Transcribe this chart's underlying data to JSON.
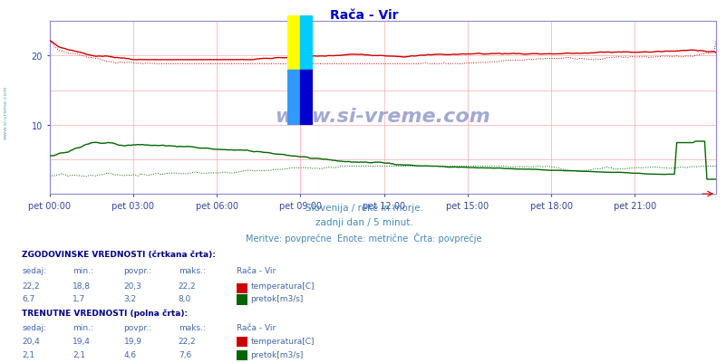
{
  "title": "Rača - Vir",
  "title_color": "#0000cc",
  "bg_color": "#ffffff",
  "plot_bg_color": "#ffffff",
  "subtitle_lines": [
    "Slovenija / reke in morje.",
    "zadnji dan / 5 minut.",
    "Meritve: povprečne  Enote: metrične  Črta: povprečje"
  ],
  "subtitle_color": "#4488bb",
  "xlabel_ticks": [
    "pet 00:00",
    "pet 03:00",
    "pet 06:00",
    "pet 09:00",
    "pet 12:00",
    "pet 15:00",
    "pet 18:00",
    "pet 21:00"
  ],
  "xlabel_tick_positions": [
    0,
    36,
    72,
    108,
    144,
    180,
    216,
    252
  ],
  "total_points": 288,
  "y_max": 25,
  "y_min": 0,
  "grid_color": "#ffaaaa",
  "temp_color": "#cc0000",
  "flow_color": "#006600",
  "watermark_text": "www.si-vreme.com",
  "watermark_color": "#334499",
  "watermark_alpha": 0.45,
  "axis_color": "#8888cc",
  "tick_color": "#334499",
  "table_header_color": "#000088",
  "table_text_color": "#4466aa",
  "icon_red": "#cc0000",
  "icon_green": "#006600",
  "left_label_color": "#4488bb"
}
